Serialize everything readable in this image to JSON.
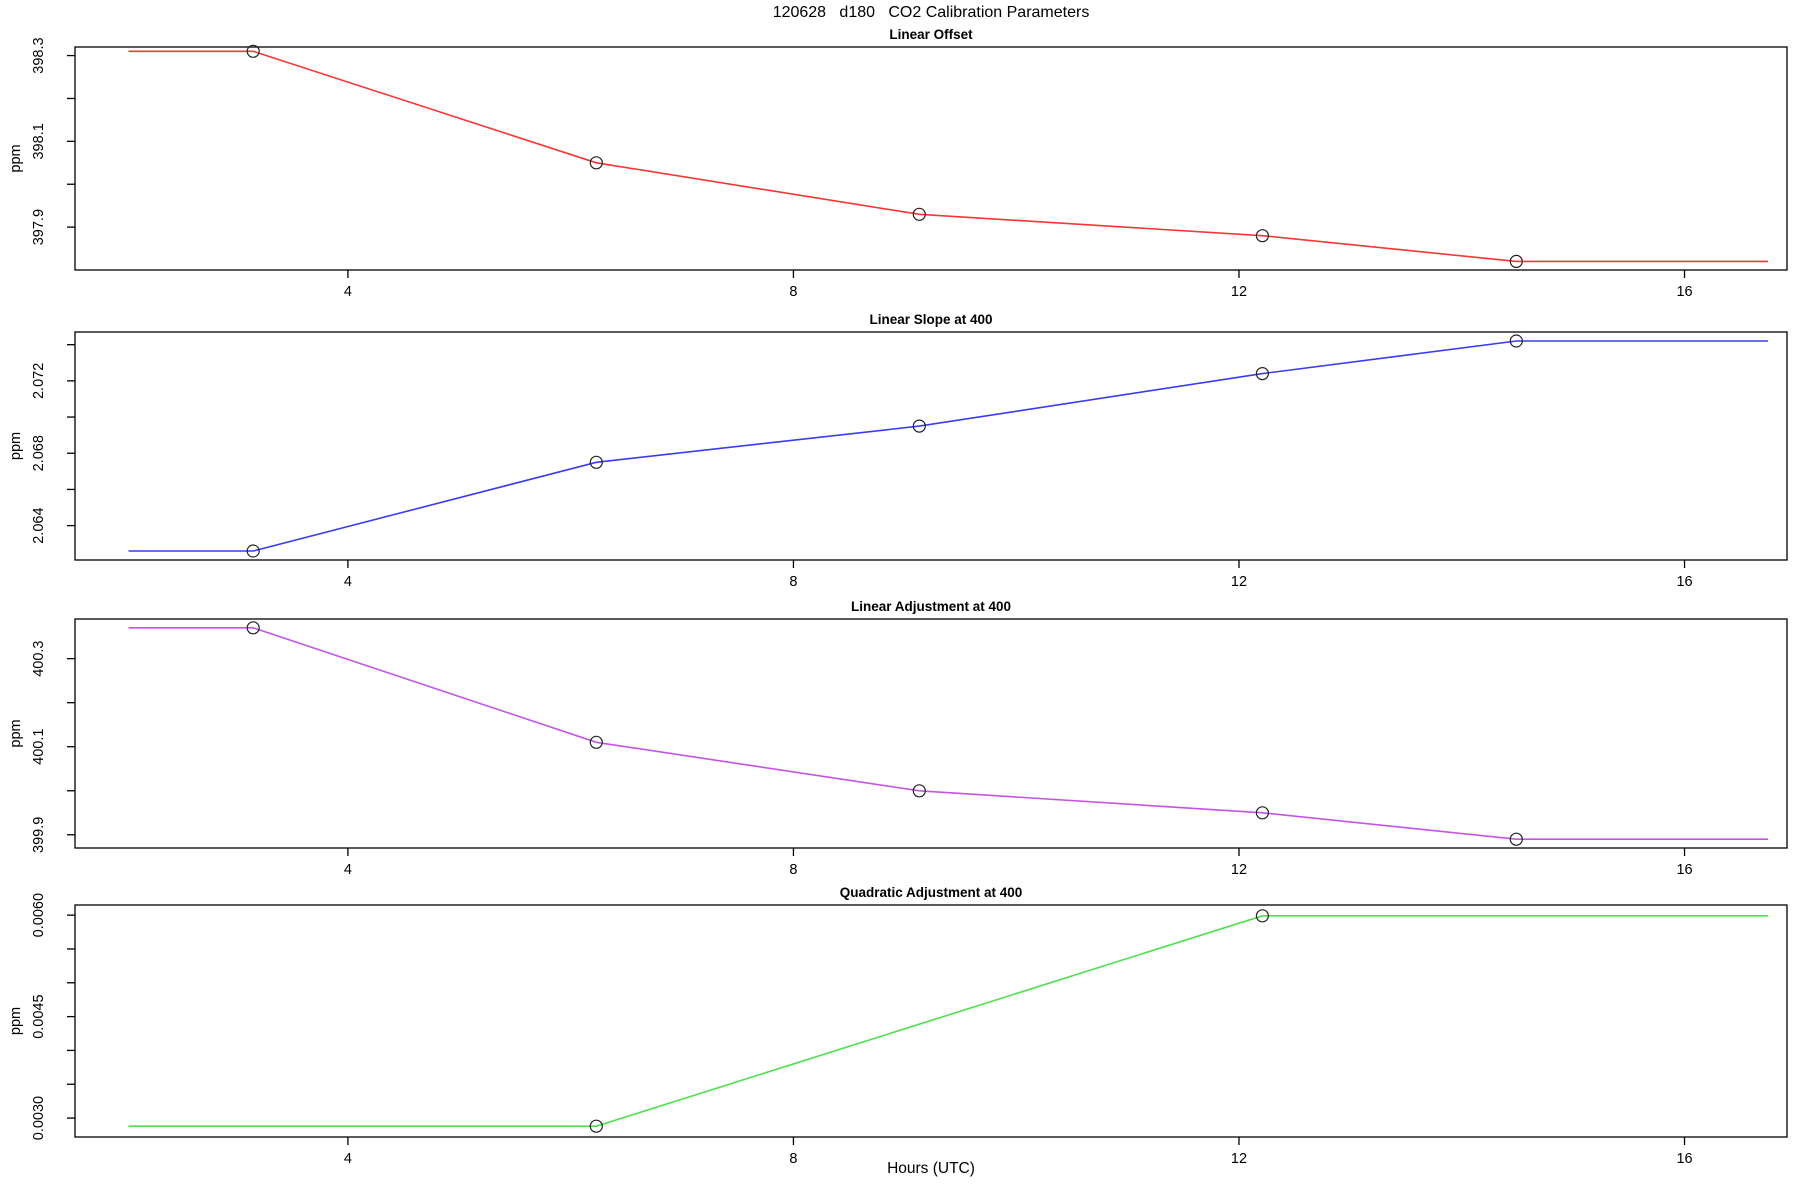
{
  "figure": {
    "title": "120628   d180   CO2 Calibration Parameters",
    "xlabel": "Hours (UTC)",
    "background": "#ffffff",
    "axis_color": "#000000",
    "marker_color": "#222222"
  },
  "chart_data": [
    {
      "type": "line",
      "title": "Linear Offset",
      "ylabel": "ppm",
      "color": "#f93535",
      "x": [
        3.15,
        6.23,
        9.13,
        12.21,
        14.49
      ],
      "y": [
        398.31,
        398.05,
        397.93,
        397.88,
        397.82
      ],
      "line_x_start": 2.03,
      "line_x_end": 16.75,
      "xlim": [
        1.55,
        16.92
      ],
      "xticks": [
        4,
        8,
        12,
        16
      ],
      "ylim": [
        397.8,
        398.32
      ],
      "yticks": [
        397.9,
        398.0,
        398.1,
        398.2,
        398.3
      ],
      "ytick_labels": [
        "397.9",
        "",
        "398.1",
        "",
        "398.3"
      ],
      "grid": false,
      "legend": "none"
    },
    {
      "type": "line",
      "title": "Linear Slope at 400",
      "ylabel": "ppm",
      "color": "#3b3bf2",
      "x": [
        3.15,
        6.23,
        9.13,
        12.21,
        14.49
      ],
      "y": [
        2.0626,
        2.0675,
        2.0695,
        2.0724,
        2.0742
      ],
      "line_x_start": 2.03,
      "line_x_end": 16.75,
      "xlim": [
        1.55,
        16.92
      ],
      "xticks": [
        4,
        8,
        12,
        16
      ],
      "ylim": [
        2.0621,
        2.0747
      ],
      "yticks": [
        2.064,
        2.066,
        2.068,
        2.07,
        2.072,
        2.074
      ],
      "ytick_labels": [
        "2.064",
        "",
        "2.068",
        "",
        "2.072",
        ""
      ],
      "grid": false,
      "legend": "none"
    },
    {
      "type": "line",
      "title": "Linear Adjustment at 400",
      "ylabel": "ppm",
      "color": "#c653e8",
      "x": [
        3.15,
        6.23,
        9.13,
        12.21,
        14.49
      ],
      "y": [
        400.37,
        400.11,
        400.0,
        399.95,
        399.89
      ],
      "line_x_start": 2.03,
      "line_x_end": 16.75,
      "xlim": [
        1.55,
        16.92
      ],
      "xticks": [
        4,
        8,
        12,
        16
      ],
      "ylim": [
        399.87,
        400.39
      ],
      "yticks": [
        399.9,
        400.0,
        400.1,
        400.2,
        400.3
      ],
      "ytick_labels": [
        "399.9",
        "",
        "400.1",
        "",
        "400.3"
      ],
      "grid": false,
      "legend": "none"
    },
    {
      "type": "line",
      "title": "Quadratic Adjustment at 400",
      "ylabel": "ppm",
      "color": "#4fdf4f",
      "x": [
        6.23,
        12.21
      ],
      "y": [
        0.00288,
        0.00599
      ],
      "line_x_start": 2.03,
      "line_x_end": 16.75,
      "xlim": [
        1.55,
        16.92
      ],
      "xticks": [
        4,
        8,
        12,
        16
      ],
      "ylim": [
        0.00272,
        0.00615
      ],
      "yticks": [
        0.003,
        0.0035,
        0.004,
        0.0045,
        0.005,
        0.0055,
        0.006
      ],
      "ytick_labels": [
        "0.0030",
        "",
        "",
        "0.0045",
        "",
        "",
        "0.0060"
      ],
      "grid": false,
      "legend": "none"
    }
  ]
}
